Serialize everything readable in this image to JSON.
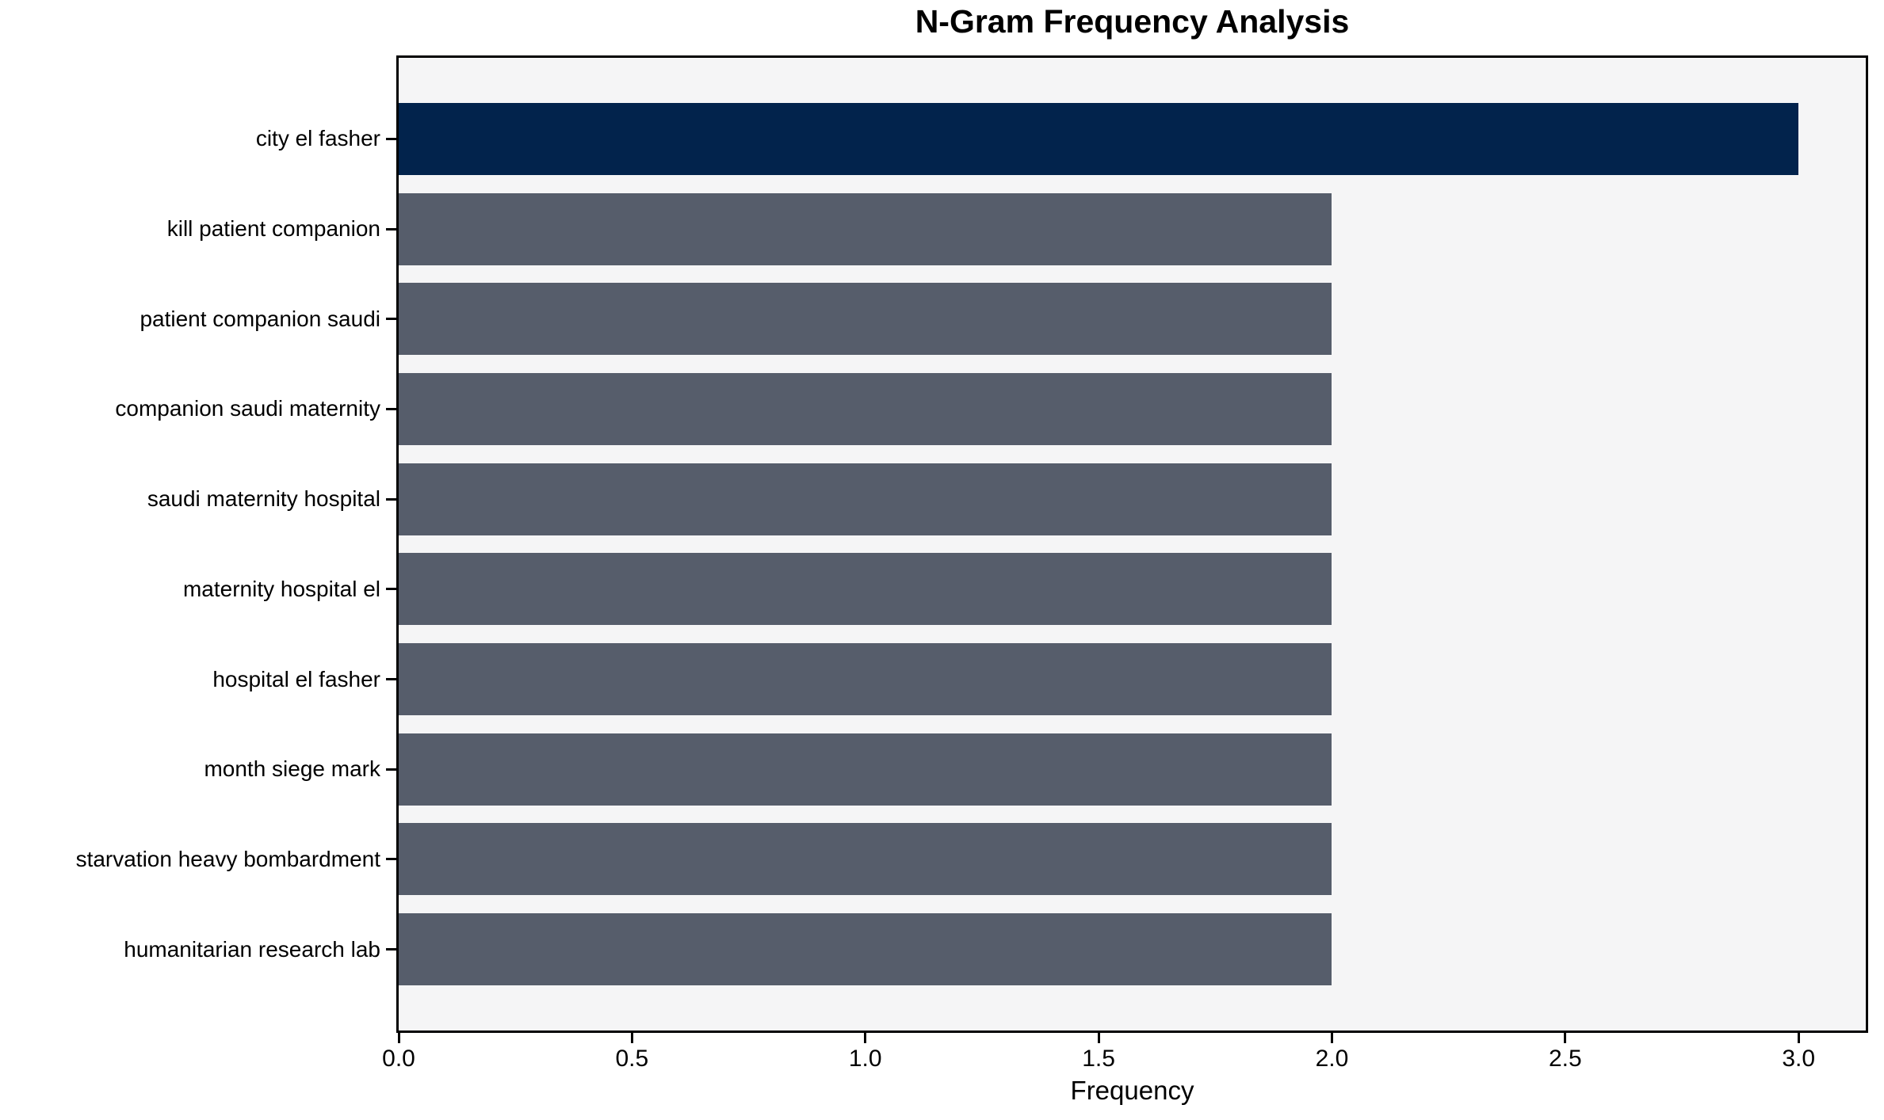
{
  "chart_data": {
    "type": "bar",
    "orientation": "horizontal",
    "title": "N-Gram Frequency Analysis",
    "xlabel": "Frequency",
    "ylabel": "",
    "categories": [
      "city el fasher",
      "kill patient companion",
      "patient companion saudi",
      "companion saudi maternity",
      "saudi maternity hospital",
      "maternity hospital el",
      "hospital el fasher",
      "month siege mark",
      "starvation heavy bombardment",
      "humanitarian research lab"
    ],
    "values": [
      3,
      2,
      2,
      2,
      2,
      2,
      2,
      2,
      2,
      2
    ],
    "xticks": [
      0.0,
      0.5,
      1.0,
      1.5,
      2.0,
      2.5,
      3.0
    ],
    "xtick_labels": [
      "0.0",
      "0.5",
      "1.0",
      "1.5",
      "2.0",
      "2.5",
      "3.0"
    ],
    "xlim": [
      0,
      3.144
    ],
    "grid": false,
    "legend": null,
    "colors": {
      "highlight_bar": "#02234c",
      "bar": "#565d6b",
      "plot_background": "#f5f5f6",
      "spine": "#000000",
      "text": "#000000"
    },
    "highlight_index": 0
  }
}
